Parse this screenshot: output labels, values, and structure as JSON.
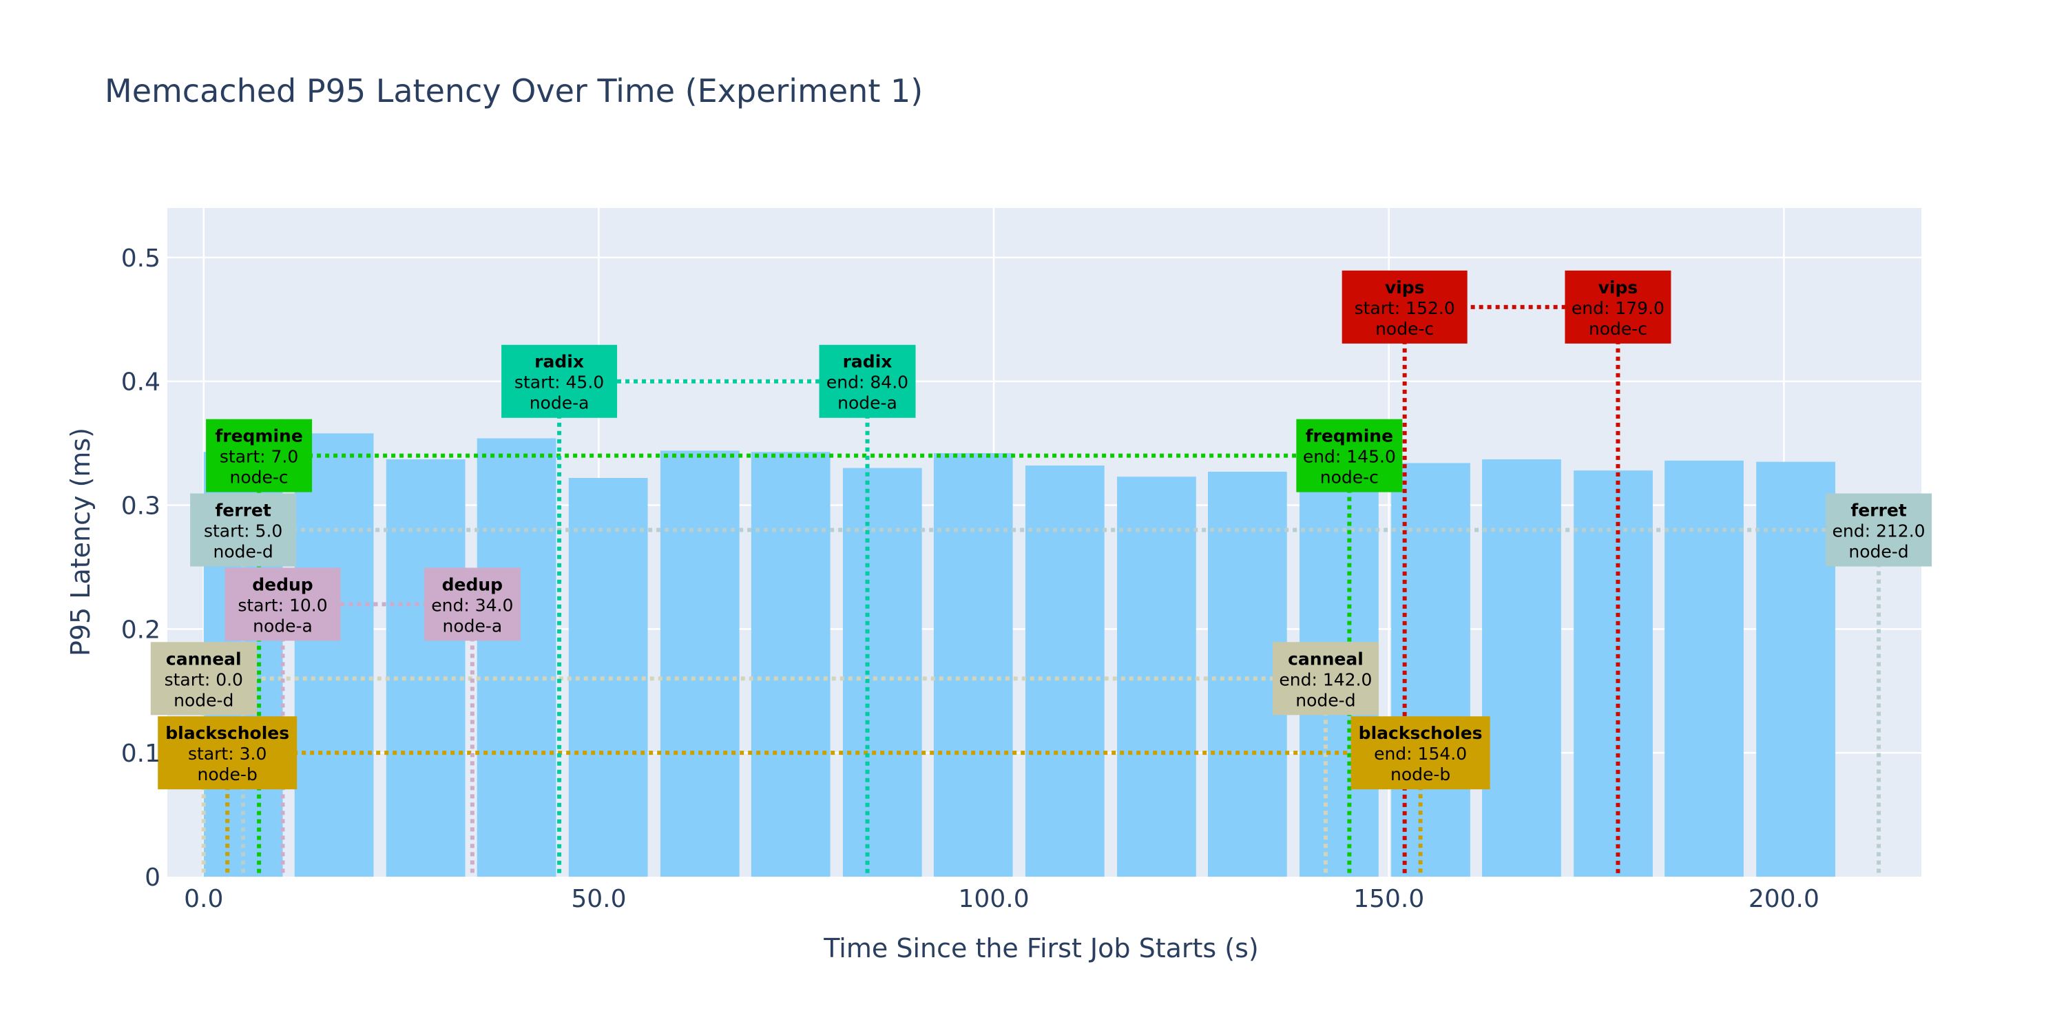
{
  "chart_data": {
    "type": "bar",
    "title": "Memcached P95 Latency Over Time (Experiment 1)",
    "xlabel": "Time Since the First Job Starts (s)",
    "ylabel": "P95 Latency (ms)",
    "xlim": [
      -4.6,
      217.4
    ],
    "ylim": [
      0,
      0.54
    ],
    "x_ticks": [
      0,
      50,
      100,
      150,
      200
    ],
    "x_tick_labels": [
      "0.0",
      "50.0",
      "100.0",
      "150.0",
      "200.0"
    ],
    "y_ticks": [
      0,
      0.1,
      0.2,
      0.3,
      0.4,
      0.5
    ],
    "y_tick_labels": [
      "0",
      "0.1",
      "0.2",
      "0.3",
      "0.4",
      "0.5"
    ],
    "bar_color": "#87cefa",
    "plot_bg": "#e5ecf6",
    "grid": true,
    "bars": [
      {
        "x": 5.0,
        "y": 0.343
      },
      {
        "x": 16.5,
        "y": 0.358
      },
      {
        "x": 28.1,
        "y": 0.337
      },
      {
        "x": 39.6,
        "y": 0.354
      },
      {
        "x": 51.2,
        "y": 0.322
      },
      {
        "x": 62.8,
        "y": 0.344
      },
      {
        "x": 74.3,
        "y": 0.343
      },
      {
        "x": 85.9,
        "y": 0.33
      },
      {
        "x": 97.4,
        "y": 0.342
      },
      {
        "x": 109.0,
        "y": 0.332
      },
      {
        "x": 120.6,
        "y": 0.323
      },
      {
        "x": 132.1,
        "y": 0.327
      },
      {
        "x": 143.7,
        "y": 0.347
      },
      {
        "x": 155.3,
        "y": 0.334
      },
      {
        "x": 166.8,
        "y": 0.337
      },
      {
        "x": 178.4,
        "y": 0.328
      },
      {
        "x": 189.9,
        "y": 0.336
      },
      {
        "x": 201.5,
        "y": 0.335
      }
    ],
    "bar_width": 10.0,
    "jobs": [
      {
        "name": "canneal",
        "start": 0.0,
        "end": 142.0,
        "node": "node-d",
        "y": 0.16,
        "color": "#c8c8a9",
        "line_color": "#d4d4bb"
      },
      {
        "name": "blackscholes",
        "start": 3.0,
        "end": 154.0,
        "node": "node-b",
        "y": 0.1,
        "color": "#cca000",
        "line_color": "#cca000"
      },
      {
        "name": "ferret",
        "start": 5.0,
        "end": 212.0,
        "node": "node-d",
        "y": 0.28,
        "color": "#aacccc",
        "line_color": "#b9cfcf"
      },
      {
        "name": "freqmine",
        "start": 7.0,
        "end": 145.0,
        "node": "node-c",
        "y": 0.34,
        "color": "#0cca00",
        "line_color": "#0cca00"
      },
      {
        "name": "dedup",
        "start": 10.0,
        "end": 34.0,
        "node": "node-a",
        "y": 0.22,
        "color": "#ccacca",
        "line_color": "#ccacca"
      },
      {
        "name": "radix",
        "start": 45.0,
        "end": 84.0,
        "node": "node-a",
        "y": 0.4,
        "color": "#00cca0",
        "line_color": "#00cca0"
      },
      {
        "name": "vips",
        "start": 152.0,
        "end": 179.0,
        "node": "node-c",
        "y": 0.46,
        "color": "#cc0a00",
        "line_color": "#cc0a00"
      }
    ],
    "start_prefix": "start: ",
    "end_prefix": "end: "
  }
}
